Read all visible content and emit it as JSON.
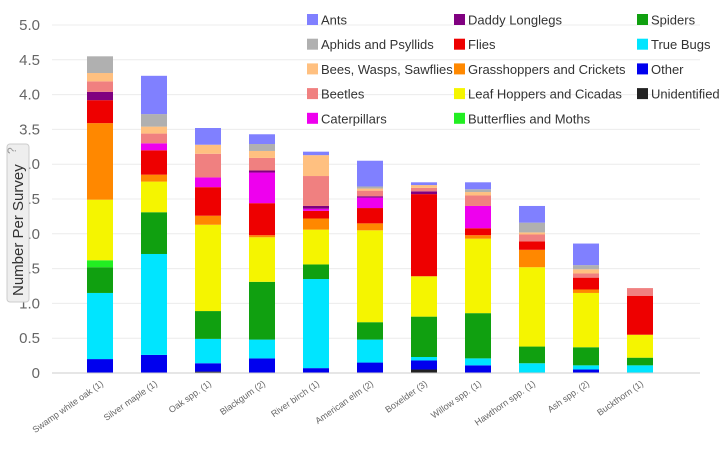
{
  "chart_data": {
    "type": "bar",
    "stacked": true,
    "ylabel": "Number Per Survey",
    "ylabel_hint": "?",
    "ylim": [
      0,
      5.0
    ],
    "yticks": [
      "0",
      "0.5",
      "1.0",
      "1.5",
      "2.0",
      "2.5",
      "3.0",
      "3.5",
      "4.0",
      "4.5",
      "5.0"
    ],
    "grid": true,
    "legend_position": "top-right",
    "categories": [
      "Swamp white oak (1)",
      "Silver maple (1)",
      "Oak spp. (1)",
      "Blackgum (2)",
      "River birch (1)",
      "American elm (2)",
      "Boxelder (3)",
      "Willow spp. (1)",
      "Hawthorn spp. (1)",
      "Ash spp. (2)",
      "Buckthorn (1)"
    ],
    "series": [
      {
        "name": "Unidentified",
        "color": "#222222",
        "values": [
          0,
          0,
          0.02,
          0,
          0,
          0,
          0.05,
          0,
          0,
          0,
          0
        ]
      },
      {
        "name": "Other",
        "color": "#0000ee",
        "values": [
          0.2,
          0.26,
          0.12,
          0.21,
          0.07,
          0.15,
          0.13,
          0.11,
          0,
          0.05,
          0
        ]
      },
      {
        "name": "True Bugs",
        "color": "#00e5ff",
        "values": [
          0.95,
          1.45,
          0.35,
          0.27,
          1.28,
          0.33,
          0.05,
          0.1,
          0.14,
          0.06,
          0.11
        ]
      },
      {
        "name": "Spiders",
        "color": "#10a010",
        "values": [
          0.37,
          0.6,
          0.4,
          0.83,
          0.21,
          0.25,
          0.58,
          0.65,
          0.24,
          0.26,
          0.11
        ]
      },
      {
        "name": "Butterflies and Moths",
        "color": "#22ee22",
        "values": [
          0.1,
          0,
          0,
          0,
          0,
          0,
          0,
          0,
          0,
          0,
          0
        ]
      },
      {
        "name": "Leaf Hoppers and Cicadas",
        "color": "#f5f500",
        "values": [
          0.87,
          0.44,
          1.24,
          0.64,
          0.5,
          1.32,
          0.58,
          1.07,
          1.14,
          0.78,
          0.33
        ]
      },
      {
        "name": "Grasshoppers and Crickets",
        "color": "#ff8800",
        "values": [
          1.1,
          0.1,
          0.13,
          0.03,
          0.16,
          0.1,
          0,
          0.05,
          0.25,
          0.05,
          0
        ]
      },
      {
        "name": "Flies",
        "color": "#ee0000",
        "values": [
          0.33,
          0.35,
          0.41,
          0.46,
          0.11,
          0.22,
          1.18,
          0.1,
          0.12,
          0.17,
          0.56
        ]
      },
      {
        "name": "Caterpillars",
        "color": "#ee00ee",
        "values": [
          0,
          0.1,
          0.14,
          0.44,
          0.03,
          0.15,
          0,
          0.32,
          0,
          0,
          0
        ]
      },
      {
        "name": "Daddy Longlegs",
        "color": "#800080",
        "values": [
          0.12,
          0,
          0,
          0.03,
          0.04,
          0.02,
          0.04,
          0,
          0,
          0,
          0
        ]
      },
      {
        "name": "Beetles",
        "color": "#f08080",
        "values": [
          0.15,
          0.14,
          0.34,
          0.18,
          0.43,
          0.08,
          0.05,
          0.15,
          0.1,
          0.06,
          0.11
        ]
      },
      {
        "name": "Bees, Wasps, Sawflies",
        "color": "#ffc080",
        "values": [
          0.12,
          0.1,
          0.13,
          0.1,
          0.3,
          0.03,
          0.04,
          0.05,
          0.03,
          0.06,
          0
        ]
      },
      {
        "name": "Aphids and Psyllids",
        "color": "#b0b0b0",
        "values": [
          0.24,
          0.18,
          0,
          0.1,
          0,
          0.03,
          0,
          0.04,
          0.14,
          0.06,
          0
        ]
      },
      {
        "name": "Ants",
        "color": "#8080ff",
        "values": [
          0,
          0.55,
          0.24,
          0.14,
          0.05,
          0.37,
          0.04,
          0.1,
          0.24,
          0.31,
          0
        ]
      }
    ],
    "legend_order": [
      "Ants",
      "Daddy Longlegs",
      "Spiders",
      "Aphids and Psyllids",
      "Flies",
      "True Bugs",
      "Bees, Wasps, Sawflies",
      "Grasshoppers and Crickets",
      "Other",
      "Beetles",
      "Leaf Hoppers and Cicadas",
      "Unidentified",
      "Caterpillars",
      "Butterflies and Moths"
    ]
  }
}
